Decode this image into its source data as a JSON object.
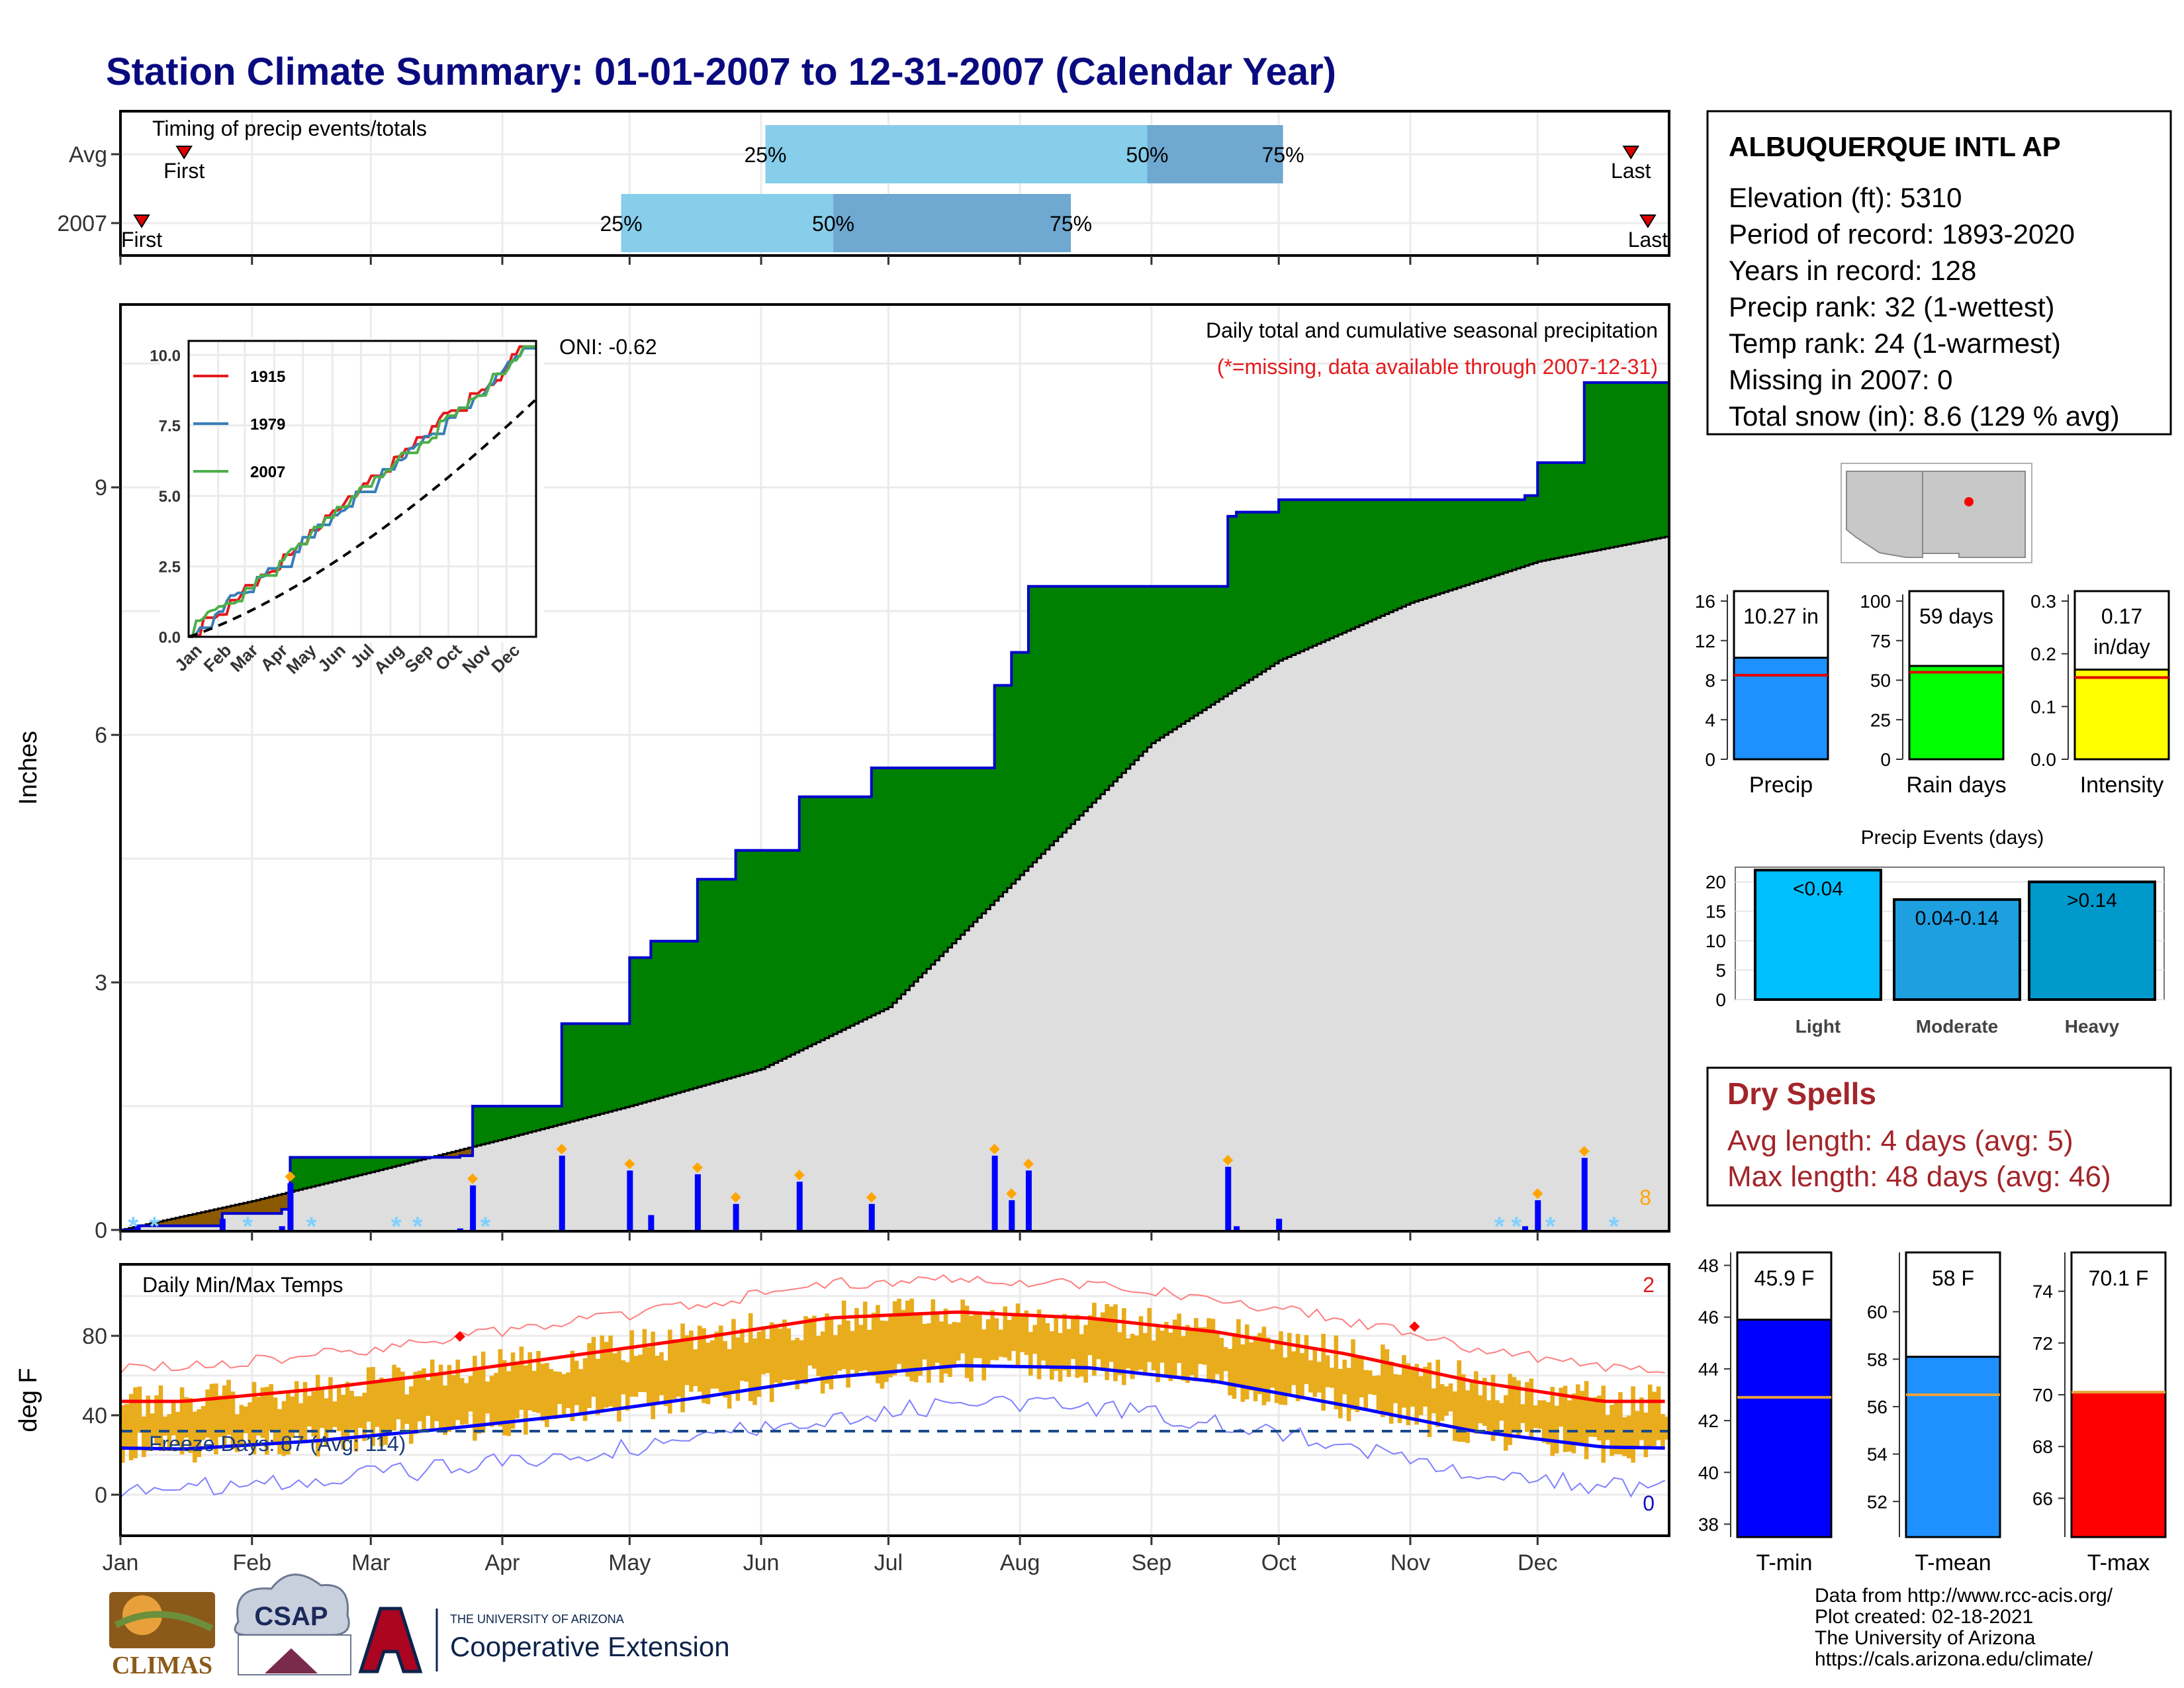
{
  "title": "Station Climate Summary: 01-01-2007 to 12-31-2007 (Calendar Year)",
  "timing": {
    "label": "Timing of precip events/totals",
    "rows": [
      {
        "name": "Avg",
        "first": 15,
        "q25": 152,
        "q50": 242,
        "q75": 274,
        "last": 356
      },
      {
        "name": "2007",
        "first": 5,
        "q25": 118,
        "q50": 168,
        "q75": 224,
        "last": 360
      }
    ],
    "first_label": "First",
    "last_label": "Last",
    "q_labels": [
      "25%",
      "50%",
      "75%"
    ]
  },
  "main": {
    "ylabel": "Inches",
    "title_line1": "Daily total and cumulative seasonal precipitation",
    "title_line2": "(*=missing, data available through 2007-12-31)",
    "oni": "ONI: -0.62",
    "count_label": "8",
    "yticks": [
      0,
      3,
      6,
      9
    ],
    "ylim": [
      0,
      11.2
    ]
  },
  "inset": {
    "yticks": [
      "0.0",
      "2.5",
      "5.0",
      "7.5",
      "10.0"
    ],
    "months": [
      "Jan",
      "Feb",
      "Mar",
      "Apr",
      "May",
      "Jun",
      "Jul",
      "Aug",
      "Sep",
      "Oct",
      "Nov",
      "Dec"
    ],
    "legend": [
      {
        "name": "1915",
        "color": "#e41a1c"
      },
      {
        "name": "1979",
        "color": "#377eb8"
      },
      {
        "name": "2007",
        "color": "#4daf4a"
      }
    ]
  },
  "temps": {
    "label": "Daily Min/Max Temps",
    "ylabel": "deg F",
    "freeze": "Freeze Days: 87 (Avg: 114)",
    "count_hot": "2",
    "count_cold": "0",
    "yticks": [
      0,
      40,
      80
    ],
    "months": [
      "Jan",
      "Feb",
      "Mar",
      "Apr",
      "May",
      "Jun",
      "Jul",
      "Aug",
      "Sep",
      "Oct",
      "Nov",
      "Dec"
    ]
  },
  "station": {
    "name": "ALBUQUERQUE INTL AP",
    "lines": [
      "Elevation (ft): 5310",
      "Period of record: 1893-2020",
      "Years in record: 128",
      "Precip rank: 32 (1-wettest)",
      "Temp rank: 24 (1-warmest)",
      "Missing in 2007: 0",
      "Total snow (in): 8.6 (129 % avg)"
    ]
  },
  "summary_bars": [
    {
      "label": "Precip",
      "value_label": "10.27 in",
      "value": 10.27,
      "avg": 8.5,
      "ymax": 16,
      "ticks": [
        "0",
        "4",
        "8",
        "12",
        "16"
      ],
      "color": "#1e90ff"
    },
    {
      "label": "Rain days",
      "value_label": "59 days",
      "value": 59,
      "avg": 55,
      "ymax": 100,
      "ticks": [
        "0",
        "25",
        "50",
        "75",
        "100"
      ],
      "color": "#00ff00"
    },
    {
      "label": "Intensity",
      "value_label": "0.17",
      "value_label2": "in/day",
      "value": 0.17,
      "avg": 0.155,
      "ymax": 0.3,
      "ticks": [
        "0.0",
        "0.1",
        "0.2",
        "0.3"
      ],
      "color": "#ffff00"
    }
  ],
  "events": {
    "title": "Precip Events (days)",
    "yticks": [
      "0",
      "5",
      "10",
      "15",
      "20"
    ],
    "bars": [
      {
        "cat": "Light",
        "label": "<0.04",
        "value": 22,
        "color": "#00bfff"
      },
      {
        "cat": "Moderate",
        "label": "0.04-0.14",
        "value": 17,
        "color": "#1e9fdf"
      },
      {
        "cat": "Heavy",
        "label": ">0.14",
        "value": 20,
        "color": "#0099cc"
      }
    ]
  },
  "dry": {
    "title": "Dry Spells",
    "avg": "Avg length: 4 days (avg: 5)",
    "max": "Max length: 48 days (avg: 46)"
  },
  "temp_bars": [
    {
      "label": "T-min",
      "value_label": "45.9 F",
      "value": 45.9,
      "avg": 42.9,
      "ymin": 37.5,
      "ymax": 48.5,
      "ticks": [
        "38",
        "40",
        "42",
        "44",
        "46",
        "48"
      ],
      "color": "#0000ff"
    },
    {
      "label": "T-mean",
      "value_label": "58 F",
      "value": 58.1,
      "avg": 56.5,
      "ymin": 50.5,
      "ymax": 62.5,
      "ticks": [
        "52",
        "54",
        "56",
        "58",
        "60"
      ],
      "color": "#1e90ff"
    },
    {
      "label": "T-max",
      "value_label": "70.1 F",
      "value": 70.1,
      "avg": 70.1,
      "ymin": 64.5,
      "ymax": 75.5,
      "ticks": [
        "66",
        "68",
        "70",
        "72",
        "74"
      ],
      "color": "#ff0000"
    }
  ],
  "footer": [
    "Data from http://www.rcc-acis.org/",
    "Plot created: 02-18-2021",
    "The University of Arizona",
    "https://cals.arizona.edu/climate/"
  ],
  "logos": {
    "climas": "CLIMAS",
    "csap": "CSAP",
    "ua_small": "THE UNIVERSITY OF ARIZONA",
    "ua_big": "Cooperative Extension"
  },
  "colors": {
    "title": "#0a0a80",
    "wet": "#008000",
    "dry": "#8b5a00",
    "normal": "#dedede",
    "line": "#0000cd"
  },
  "chart_data": [
    {
      "type": "area",
      "title": "Daily total and cumulative seasonal precipitation",
      "ylabel": "Inches",
      "ylim": [
        0,
        11.2
      ],
      "series": [
        {
          "name": "2007",
          "x": [
            "01-01",
            "01-05",
            "01-25",
            "02-08",
            "02-10",
            "03-22",
            "03-25",
            "04-15",
            "05-01",
            "05-06",
            "05-17",
            "05-26",
            "06-01",
            "06-10",
            "06-27",
            "07-05",
            "07-26",
            "07-30",
            "08-03",
            "08-08",
            "09-19",
            "09-21",
            "10-01",
            "11-28",
            "12-01",
            "12-12",
            "12-31"
          ],
          "values": [
            0.0,
            0.05,
            0.2,
            0.25,
            0.88,
            0.9,
            1.5,
            2.5,
            3.3,
            3.5,
            4.25,
            4.6,
            4.6,
            5.25,
            5.6,
            5.6,
            6.6,
            7.0,
            7.8,
            7.8,
            8.65,
            8.7,
            8.85,
            8.9,
            9.3,
            10.27,
            10.27
          ]
        },
        {
          "name": "Avg",
          "x": [
            "01-01",
            "02-01",
            "03-01",
            "04-01",
            "05-01",
            "06-01",
            "07-01",
            "08-01",
            "09-01",
            "10-01",
            "11-01",
            "12-01",
            "12-31"
          ],
          "values": [
            0.0,
            0.35,
            0.7,
            1.1,
            1.5,
            1.95,
            2.7,
            4.3,
            5.9,
            6.9,
            7.6,
            8.1,
            8.4
          ]
        }
      ]
    },
    {
      "type": "line",
      "title": "Daily Min/Max Temps",
      "ylabel": "deg F",
      "x": [
        "Jan",
        "Feb",
        "Mar",
        "Apr",
        "May",
        "Jun",
        "Jul",
        "Aug",
        "Sep",
        "Oct",
        "Nov",
        "Dec"
      ],
      "series": [
        {
          "name": "Normal max",
          "values": [
            47,
            53,
            61,
            70,
            79,
            89,
            92,
            89,
            82,
            71,
            57,
            47
          ]
        },
        {
          "name": "Normal min",
          "values": [
            23,
            27,
            33,
            40,
            49,
            59,
            65,
            64,
            57,
            45,
            32,
            24
          ]
        }
      ]
    }
  ]
}
